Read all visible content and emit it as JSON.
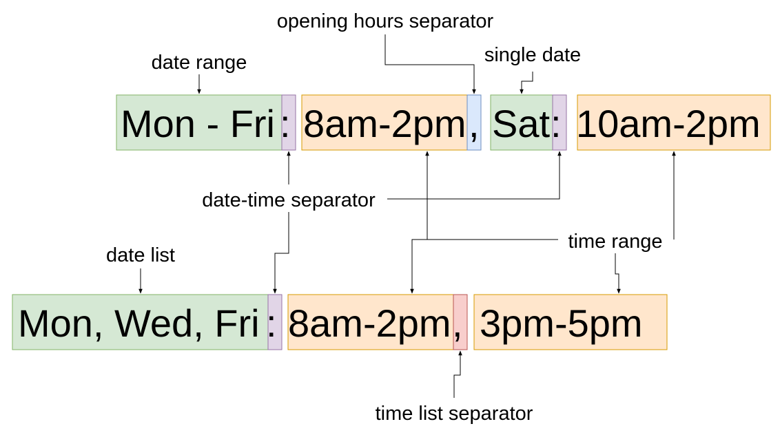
{
  "colors": {
    "date_fill": "#d5e8d4",
    "date_stroke": "#82b366",
    "time_fill": "#ffe6cc",
    "time_stroke": "#d79b00",
    "date_time_sep_fill": "#e1d5e7",
    "date_time_sep_stroke": "#9673a6",
    "hours_sep_fill": "#dae8fc",
    "hours_sep_stroke": "#6c8ebf",
    "time_list_sep_fill": "#f8cecc",
    "time_list_sep_stroke": "#b85450"
  },
  "row1": {
    "date_range": "Mon - Fri",
    "sep1": ":",
    "time1": "8am-2pm",
    "hours_sep": ",",
    "single_date": "Sat",
    "sep2": ":",
    "time2": "10am-2pm"
  },
  "row2": {
    "date_list": "Mon, Wed, Fri",
    "sep": ":",
    "time1": "8am-2pm",
    "time_list_sep": ",",
    "time2": "3pm-5pm"
  },
  "labels": {
    "opening_hours_separator": "opening hours separator",
    "single_date": "single date",
    "date_range": "date range",
    "date_time_separator": "date-time separator",
    "time_range": "time range",
    "date_list": "date list",
    "time_list_separator": "time list separator"
  }
}
